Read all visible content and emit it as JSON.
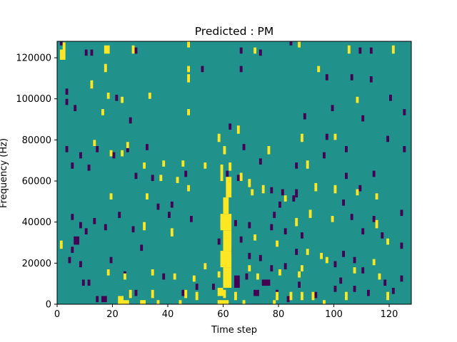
{
  "chart_data": {
    "type": "heatmap",
    "title": "Predicted : PM",
    "xlabel": "Time step",
    "ylabel": "Frequency (Hz)",
    "xlim": [
      0,
      128
    ],
    "ylim": [
      0,
      128000
    ],
    "x_ticks": [
      0,
      20,
      40,
      60,
      80,
      100,
      120
    ],
    "y_ticks": [
      0,
      20000,
      40000,
      60000,
      80000,
      100000,
      120000
    ],
    "colormap": "viridis",
    "colors": {
      "background": "#21918c",
      "high": "#fde725",
      "low": "#440154"
    },
    "grid": false,
    "legend": "none",
    "cells_high": [
      [
        1,
        119000,
        2,
        5000
      ],
      [
        2,
        123500,
        1,
        4000
      ],
      [
        17,
        122000,
        2,
        4000
      ],
      [
        27,
        122000,
        1,
        4000
      ],
      [
        47,
        125000,
        1,
        3000
      ],
      [
        87,
        125000,
        1,
        3000
      ],
      [
        71,
        122000,
        1,
        3000
      ],
      [
        105,
        122000,
        1,
        4000
      ],
      [
        121,
        122000,
        1,
        4000
      ],
      [
        17,
        113000,
        1,
        4000
      ],
      [
        47,
        113000,
        1,
        3000
      ],
      [
        94,
        113000,
        1,
        3000
      ],
      [
        47,
        108000,
        1,
        4000
      ],
      [
        12,
        105000,
        1,
        4000
      ],
      [
        18,
        100000,
        1,
        3000
      ],
      [
        33,
        100000,
        1,
        3000
      ],
      [
        23,
        98000,
        1,
        3000
      ],
      [
        108,
        98000,
        1,
        3000
      ],
      [
        16,
        92000,
        1,
        3000
      ],
      [
        47,
        92000,
        1,
        3000
      ],
      [
        65,
        83000,
        1,
        4000
      ],
      [
        58,
        79000,
        1,
        4000
      ],
      [
        88,
        79000,
        1,
        4000
      ],
      [
        100,
        80000,
        1,
        3000
      ],
      [
        60,
        73000,
        1,
        4000
      ],
      [
        76,
        73000,
        1,
        4000
      ],
      [
        13,
        77000,
        1,
        3000
      ],
      [
        25,
        76000,
        1,
        3000
      ],
      [
        38,
        67000,
        1,
        3000
      ],
      [
        45,
        67000,
        1,
        3000
      ],
      [
        53,
        66000,
        1,
        3000
      ],
      [
        37,
        60000,
        1,
        3000
      ],
      [
        19,
        72000,
        1,
        3000
      ],
      [
        31,
        66000,
        1,
        3000
      ],
      [
        23,
        72000,
        1,
        3000
      ],
      [
        90,
        66000,
        1,
        4000
      ],
      [
        62,
        65000,
        1,
        4000
      ],
      [
        66,
        60000,
        1,
        4000
      ],
      [
        69,
        57000,
        1,
        4000
      ],
      [
        74,
        54000,
        1,
        4000
      ],
      [
        93,
        55000,
        1,
        4000
      ],
      [
        100,
        54000,
        1,
        4000
      ],
      [
        19,
        51000,
        1,
        3000
      ],
      [
        32,
        51000,
        1,
        3000
      ],
      [
        43,
        59000,
        1,
        3000
      ],
      [
        47,
        55000,
        1,
        3000
      ],
      [
        70,
        53000,
        1,
        3000
      ],
      [
        108,
        53000,
        1,
        3000
      ],
      [
        115,
        51000,
        1,
        3000
      ],
      [
        82,
        50000,
        1,
        3000
      ],
      [
        59,
        37000,
        1,
        4000
      ],
      [
        86,
        38000,
        1,
        4000
      ],
      [
        91,
        42000,
        1,
        4000
      ],
      [
        99,
        40000,
        1,
        3000
      ],
      [
        31,
        36000,
        1,
        4000
      ],
      [
        41,
        33000,
        1,
        4000
      ],
      [
        115,
        37000,
        1,
        4000
      ],
      [
        119,
        29000,
        1,
        3000
      ],
      [
        71,
        31000,
        1,
        3000
      ],
      [
        79,
        28000,
        1,
        3000
      ],
      [
        90,
        24000,
        1,
        3000
      ],
      [
        95,
        22000,
        1,
        3000
      ],
      [
        1,
        27000,
        1,
        4000
      ],
      [
        18,
        14000,
        1,
        3000
      ],
      [
        24,
        12000,
        1,
        3000
      ],
      [
        34,
        14000,
        1,
        3000
      ],
      [
        42,
        12000,
        1,
        3000
      ],
      [
        49,
        11000,
        1,
        3000
      ],
      [
        53,
        17000,
        1,
        3000
      ],
      [
        58,
        13000,
        1,
        3000
      ],
      [
        69,
        16000,
        1,
        3000
      ],
      [
        72,
        12000,
        1,
        3000
      ],
      [
        80,
        14000,
        1,
        3000
      ],
      [
        87,
        13000,
        1,
        3000
      ],
      [
        88,
        16000,
        1,
        3000
      ],
      [
        97,
        20000,
        1,
        3000
      ],
      [
        107,
        15000,
        1,
        3000
      ],
      [
        114,
        19000,
        1,
        3000
      ],
      [
        116,
        12000,
        1,
        3000
      ],
      [
        26,
        3000,
        1,
        4000
      ],
      [
        34,
        3000,
        1,
        4000
      ],
      [
        46,
        3000,
        1,
        4000
      ],
      [
        50,
        2000,
        1,
        4000
      ],
      [
        60,
        3000,
        1,
        4000
      ],
      [
        64,
        2000,
        1,
        4000
      ],
      [
        79,
        2000,
        1,
        4000
      ],
      [
        84,
        2000,
        1,
        4000
      ],
      [
        88,
        2000,
        1,
        4000
      ],
      [
        92,
        2000,
        1,
        4000
      ],
      [
        104,
        2000,
        1,
        4000
      ],
      [
        119,
        2000,
        1,
        4000
      ],
      [
        22,
        0,
        2,
        4000
      ],
      [
        23,
        0,
        3,
        2000
      ],
      [
        30,
        0,
        2,
        2000
      ],
      [
        36,
        0,
        1,
        2000
      ],
      [
        44,
        0,
        1,
        2000
      ],
      [
        58,
        0,
        4,
        2000
      ],
      [
        67,
        0,
        1,
        2000
      ],
      [
        78,
        0,
        1,
        2000
      ],
      [
        96,
        0,
        1,
        2000
      ],
      [
        58,
        4000,
        2,
        4000
      ],
      [
        60,
        8000,
        3,
        10000
      ],
      [
        59,
        18000,
        4,
        8000
      ],
      [
        60,
        26000,
        3,
        10000
      ],
      [
        59,
        36000,
        4,
        8000
      ],
      [
        60,
        44000,
        2,
        8000
      ],
      [
        61,
        52000,
        2,
        10000
      ],
      [
        59,
        60000,
        1,
        8000
      ]
    ],
    "cells_low": [
      [
        1,
        126000,
        1,
        2000
      ],
      [
        10,
        121000,
        1,
        3000
      ],
      [
        12,
        121000,
        1,
        3000
      ],
      [
        28,
        122000,
        1,
        3000
      ],
      [
        66,
        122000,
        1,
        3000
      ],
      [
        73,
        121000,
        1,
        3000
      ],
      [
        84,
        126000,
        1,
        2000
      ],
      [
        109,
        122000,
        1,
        3000
      ],
      [
        113,
        122000,
        1,
        3000
      ],
      [
        52,
        113000,
        1,
        3000
      ],
      [
        66,
        113000,
        1,
        3000
      ],
      [
        106,
        109000,
        1,
        3000
      ],
      [
        113,
        108000,
        1,
        3000
      ],
      [
        97,
        109000,
        1,
        3000
      ],
      [
        120,
        99000,
        1,
        3000
      ],
      [
        3,
        102000,
        1,
        3000
      ],
      [
        3,
        97000,
        1,
        3000
      ],
      [
        6,
        94000,
        1,
        3000
      ],
      [
        12,
        105000,
        1,
        3000
      ],
      [
        21,
        99000,
        1,
        3000
      ],
      [
        125,
        92000,
        1,
        3000
      ],
      [
        99,
        94000,
        1,
        3000
      ],
      [
        110,
        89000,
        1,
        3000
      ],
      [
        89,
        90000,
        1,
        3000
      ],
      [
        26,
        88000,
        1,
        3000
      ],
      [
        62,
        85000,
        1,
        3000
      ],
      [
        97,
        80000,
        1,
        3000
      ],
      [
        119,
        79000,
        1,
        3000
      ],
      [
        125,
        74000,
        1,
        3000
      ],
      [
        104,
        74000,
        1,
        3000
      ],
      [
        3,
        74000,
        1,
        3000
      ],
      [
        8,
        71000,
        1,
        3000
      ],
      [
        14,
        74000,
        1,
        3000
      ],
      [
        25,
        74000,
        1,
        4000
      ],
      [
        32,
        75000,
        1,
        3000
      ],
      [
        67,
        75000,
        1,
        3000
      ],
      [
        73,
        68000,
        1,
        3000
      ],
      [
        86,
        66000,
        1,
        3000
      ],
      [
        96,
        71000,
        1,
        3000
      ],
      [
        104,
        61000,
        1,
        3000
      ],
      [
        114,
        62000,
        1,
        3000
      ],
      [
        5,
        66000,
        1,
        3000
      ],
      [
        11,
        65000,
        1,
        3000
      ],
      [
        20,
        71000,
        1,
        3000
      ],
      [
        28,
        61000,
        1,
        3000
      ],
      [
        34,
        60000,
        1,
        3000
      ],
      [
        46,
        62000,
        1,
        3000
      ],
      [
        61,
        62000,
        1,
        3000
      ],
      [
        65,
        60000,
        1,
        3000
      ],
      [
        86,
        52000,
        1,
        4000
      ],
      [
        77,
        54000,
        1,
        3000
      ],
      [
        109,
        55000,
        1,
        3000
      ],
      [
        103,
        48000,
        1,
        3000
      ],
      [
        114,
        40000,
        1,
        3000
      ],
      [
        124,
        43000,
        1,
        3000
      ],
      [
        106,
        41000,
        1,
        3000
      ],
      [
        110,
        34000,
        1,
        3000
      ],
      [
        117,
        32000,
        1,
        3000
      ],
      [
        124,
        27000,
        1,
        3000
      ],
      [
        81,
        53000,
        1,
        3000
      ],
      [
        85,
        50000,
        1,
        3000
      ],
      [
        80,
        47000,
        1,
        3000
      ],
      [
        78,
        42000,
        1,
        3000
      ],
      [
        64,
        38000,
        1,
        3000
      ],
      [
        69,
        37000,
        1,
        3000
      ],
      [
        77,
        36000,
        1,
        3000
      ],
      [
        82,
        34000,
        1,
        3000
      ],
      [
        88,
        32000,
        1,
        3000
      ],
      [
        58,
        29000,
        1,
        3000
      ],
      [
        66,
        30000,
        1,
        3000
      ],
      [
        62,
        24000,
        1,
        3000
      ],
      [
        69,
        22000,
        1,
        3000
      ],
      [
        73,
        21000,
        1,
        3000
      ],
      [
        77,
        16000,
        1,
        3000
      ],
      [
        82,
        17000,
        1,
        3000
      ],
      [
        86,
        24000,
        1,
        3000
      ],
      [
        100,
        18000,
        1,
        3000
      ],
      [
        103,
        23000,
        1,
        3000
      ],
      [
        107,
        20000,
        1,
        3000
      ],
      [
        110,
        15000,
        1,
        3000
      ],
      [
        4,
        20000,
        1,
        3000
      ],
      [
        5,
        25000,
        1,
        3000
      ],
      [
        8,
        18000,
        1,
        3000
      ],
      [
        9,
        9000,
        1,
        3000
      ],
      [
        11,
        9000,
        1,
        3000
      ],
      [
        14,
        1000,
        1,
        3000
      ],
      [
        16,
        1000,
        2,
        3000
      ],
      [
        19,
        20000,
        1,
        3000
      ],
      [
        24,
        13000,
        1,
        3000
      ],
      [
        28,
        4000,
        1,
        3000
      ],
      [
        30,
        26000,
        1,
        3000
      ],
      [
        38,
        12000,
        1,
        3000
      ],
      [
        45,
        4000,
        1,
        3000
      ],
      [
        50,
        7000,
        1,
        3000
      ],
      [
        56,
        7000,
        1,
        3000
      ],
      [
        64,
        8000,
        2,
        6000
      ],
      [
        68,
        12000,
        1,
        3000
      ],
      [
        71,
        4000,
        2,
        3000
      ],
      [
        74,
        9000,
        3,
        3000
      ],
      [
        79,
        4000,
        1,
        3000
      ],
      [
        83,
        1000,
        1,
        3000
      ],
      [
        87,
        8000,
        1,
        3000
      ],
      [
        93,
        3000,
        1,
        3000
      ],
      [
        100,
        6000,
        1,
        3000
      ],
      [
        102,
        10000,
        1,
        3000
      ],
      [
        107,
        6000,
        1,
        3000
      ],
      [
        112,
        4000,
        1,
        3000
      ],
      [
        118,
        9000,
        1,
        3000
      ],
      [
        121,
        5000,
        1,
        3000
      ],
      [
        124,
        11000,
        1,
        3000
      ],
      [
        6,
        29000,
        2,
        4000
      ],
      [
        5,
        41000,
        1,
        3000
      ],
      [
        8,
        37000,
        1,
        3000
      ],
      [
        10,
        34000,
        1,
        3000
      ],
      [
        13,
        39000,
        1,
        3000
      ],
      [
        17,
        36000,
        1,
        3000
      ],
      [
        22,
        42000,
        1,
        3000
      ],
      [
        27,
        35000,
        1,
        3000
      ],
      [
        36,
        46000,
        1,
        3000
      ],
      [
        40,
        42000,
        1,
        3000
      ],
      [
        41,
        47000,
        1,
        3000
      ],
      [
        48,
        40000,
        1,
        3000
      ]
    ]
  }
}
